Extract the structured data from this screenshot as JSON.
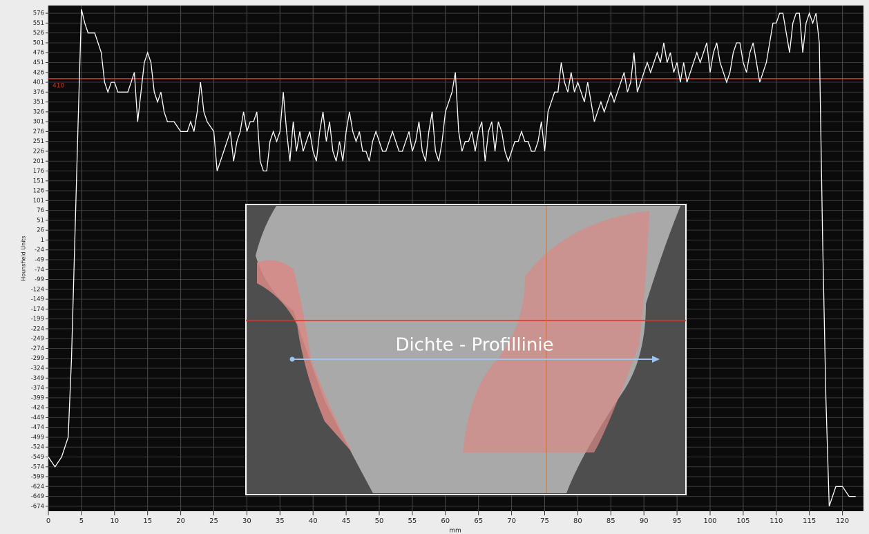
{
  "chart_data": {
    "type": "line",
    "ylabel": "Hounsfield Units",
    "xlabel": "mm",
    "xlim": [
      0,
      123
    ],
    "ylim": [
      -683,
      592
    ],
    "xticks": [
      0,
      5,
      10,
      15,
      20,
      25,
      30,
      35,
      40,
      45,
      50,
      55,
      60,
      65,
      70,
      75,
      80,
      85,
      90,
      95,
      100,
      105,
      110,
      115,
      120
    ],
    "yticks": [
      576,
      551,
      526,
      501,
      476,
      451,
      426,
      401,
      376,
      351,
      326,
      301,
      276,
      251,
      226,
      201,
      176,
      151,
      126,
      101,
      76,
      51,
      26,
      1,
      -24,
      -49,
      -74,
      -99,
      -124,
      -149,
      -174,
      -199,
      -224,
      -249,
      -274,
      -299,
      -324,
      -349,
      -374,
      -399,
      -424,
      -449,
      -474,
      -499,
      -524,
      -549,
      -574,
      -599,
      -624,
      -649,
      -674
    ],
    "grid": true,
    "threshold": 410,
    "threshold_color": "#e0301e",
    "series": [
      {
        "color": "#ffffff",
        "x": [
          0,
          1,
          2,
          3,
          3.5,
          4,
          4.5,
          5,
          5.5,
          6,
          7,
          8,
          8.5,
          9,
          9.5,
          10,
          10.5,
          11,
          12,
          12.5,
          13,
          13.5,
          14,
          14.5,
          15,
          15.5,
          16,
          16.5,
          17,
          17.5,
          18,
          19,
          20,
          21,
          21.5,
          22,
          22.5,
          23,
          23.5,
          24,
          25,
          25.5,
          26,
          26.5,
          27,
          27.5,
          28,
          28.5,
          29,
          29.5,
          30,
          30.5,
          31,
          31.5,
          32,
          32.5,
          33,
          33.5,
          34,
          34.5,
          35,
          35.5,
          36,
          36.5,
          37,
          37.5,
          38,
          38.5,
          39,
          39.5,
          40,
          40.5,
          41,
          41.5,
          42,
          42.5,
          43,
          43.5,
          44,
          44.5,
          45,
          45.5,
          46,
          46.5,
          47,
          47.5,
          48,
          48.5,
          49,
          49.5,
          50,
          50.5,
          51,
          51.5,
          52,
          52.5,
          53,
          53.5,
          54,
          54.5,
          55,
          55.5,
          56,
          56.5,
          57,
          57.5,
          58,
          58.5,
          59,
          59.5,
          60,
          60.5,
          61,
          61.5,
          62,
          62.5,
          63,
          63.5,
          64,
          64.5,
          65,
          65.5,
          66,
          66.5,
          67,
          67.5,
          68,
          68.5,
          69,
          69.5,
          70,
          70.5,
          71,
          71.5,
          72,
          72.5,
          73,
          73.5,
          74,
          74.5,
          75,
          75.5,
          76,
          76.5,
          77,
          77.5,
          78,
          78.5,
          79,
          79.5,
          80,
          80.5,
          81,
          81.5,
          82,
          82.5,
          83,
          83.5,
          84,
          84.5,
          85,
          85.5,
          86,
          86.5,
          87,
          87.5,
          88,
          88.5,
          89,
          89.5,
          90,
          90.5,
          91,
          91.5,
          92,
          92.5,
          93,
          93.5,
          94,
          94.5,
          95,
          95.5,
          96,
          96.5,
          97,
          97.5,
          98,
          98.5,
          99,
          99.5,
          100,
          100.5,
          101,
          101.5,
          102,
          102.5,
          103,
          103.5,
          104,
          104.5,
          105,
          105.5,
          106,
          106.5,
          107,
          107.5,
          108,
          108.5,
          109,
          109.5,
          110,
          110.5,
          111,
          111.5,
          112,
          112.5,
          113,
          113.5,
          114,
          114.5,
          115,
          115.5,
          116,
          116.5,
          117,
          117.5,
          118,
          118.5,
          119,
          120,
          121,
          122
        ],
        "values": [
          -549,
          -574,
          -549,
          -499,
          -300,
          0,
          300,
          586,
          551,
          526,
          526,
          476,
          401,
          376,
          401,
          401,
          376,
          376,
          376,
          401,
          426,
          301,
          376,
          451,
          476,
          451,
          376,
          351,
          376,
          326,
          301,
          301,
          276,
          276,
          301,
          276,
          326,
          401,
          326,
          301,
          276,
          176,
          201,
          226,
          251,
          276,
          201,
          251,
          276,
          326,
          276,
          301,
          301,
          326,
          201,
          176,
          176,
          251,
          276,
          251,
          276,
          376,
          276,
          201,
          301,
          226,
          276,
          226,
          251,
          276,
          226,
          201,
          276,
          326,
          251,
          301,
          226,
          201,
          251,
          201,
          276,
          326,
          276,
          251,
          276,
          226,
          226,
          201,
          251,
          276,
          251,
          226,
          226,
          251,
          276,
          251,
          226,
          226,
          251,
          276,
          226,
          251,
          301,
          226,
          201,
          276,
          326,
          226,
          201,
          251,
          326,
          351,
          376,
          426,
          276,
          226,
          251,
          251,
          276,
          226,
          276,
          301,
          201,
          276,
          301,
          226,
          301,
          276,
          226,
          201,
          226,
          251,
          251,
          276,
          251,
          251,
          226,
          226,
          251,
          301,
          226,
          326,
          351,
          376,
          376,
          451,
          401,
          376,
          426,
          376,
          401,
          376,
          351,
          401,
          351,
          301,
          326,
          351,
          326,
          351,
          376,
          351,
          376,
          401,
          426,
          376,
          401,
          476,
          376,
          401,
          426,
          451,
          426,
          451,
          476,
          451,
          501,
          451,
          476,
          426,
          451,
          401,
          451,
          401,
          426,
          451,
          476,
          451,
          476,
          501,
          426,
          476,
          501,
          451,
          426,
          401,
          426,
          476,
          501,
          501,
          451,
          426,
          476,
          501,
          451,
          401,
          426,
          451,
          501,
          551,
          551,
          576,
          576,
          526,
          476,
          551,
          576,
          576,
          476,
          551,
          576,
          551,
          576,
          500,
          0,
          -400,
          -674,
          -649,
          -624,
          -624,
          -649,
          -649
        ]
      }
    ]
  },
  "inset": {
    "label": "Dichte - Profillinie"
  }
}
